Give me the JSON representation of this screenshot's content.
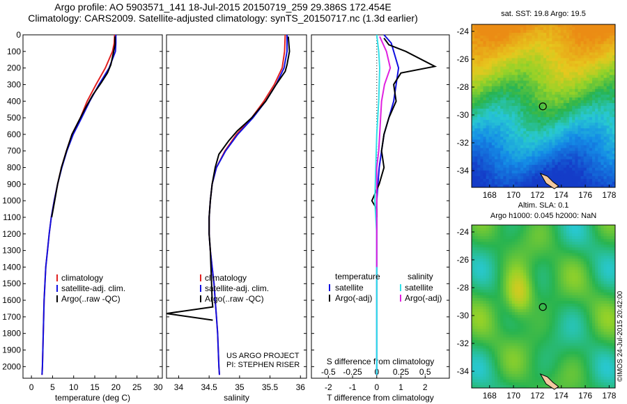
{
  "header": {
    "line1": "Argo profile: AO 5903571_141 18-Jul-2015 20150719_259 29.386S 172.454E",
    "line2": "Climatology: CARS2009. Satellite-adjusted climatology: synTS_20150717.nc (1.3d earlier)"
  },
  "credit": {
    "line1": "US ARGO PROJECT",
    "line2": "PI: STEPHEN RISER"
  },
  "watermark": "©IMOS 24-Jul-2015 20:42:00",
  "colors": {
    "climatology": "#e02020",
    "satellite": "#1010e0",
    "argo": "#000000",
    "sal_satellite": "#30e0e8",
    "sal_argo": "#e020e0"
  },
  "chart_data": [
    {
      "type": "line",
      "xlabel": "temperature (deg C)",
      "xticks": [
        "0",
        "5",
        "10",
        "15",
        "20",
        "25",
        "30"
      ],
      "xlim": [
        -2,
        31
      ],
      "yticks": [
        "0",
        "100",
        "200",
        "300",
        "400",
        "500",
        "600",
        "700",
        "800",
        "900",
        "1000",
        "1100",
        "1200",
        "1300",
        "1400",
        "1500",
        "1600",
        "1700",
        "1800",
        "1900",
        "2000"
      ],
      "ylim": [
        2070,
        0
      ],
      "legend": [
        "climatology",
        "satellite-adj. clim.",
        "Argo(..raw -QC)"
      ],
      "series": [
        {
          "name": "climatology",
          "color": "#e02020",
          "points": [
            [
              19.7,
              0
            ],
            [
              19.6,
              50
            ],
            [
              19.2,
              100
            ],
            [
              17.5,
              200
            ],
            [
              15.3,
              300
            ],
            [
              13.2,
              400
            ],
            [
              11.6,
              500
            ],
            [
              9.6,
              600
            ],
            [
              8.3,
              700
            ],
            [
              7.1,
              800
            ],
            [
              6.2,
              900
            ],
            [
              5.4,
              1000
            ],
            [
              4.7,
              1100
            ],
            [
              4.2,
              1200
            ],
            [
              3.8,
              1300
            ],
            [
              3.4,
              1400
            ],
            [
              3.2,
              1500
            ],
            [
              3.0,
              1600
            ],
            [
              2.9,
              1700
            ],
            [
              2.8,
              1800
            ],
            [
              2.7,
              1900
            ],
            [
              2.6,
              2000
            ],
            [
              2.5,
              2050
            ]
          ]
        },
        {
          "name": "satellite-adj. clim.",
          "color": "#1010e0",
          "points": [
            [
              20.0,
              0
            ],
            [
              20.0,
              50
            ],
            [
              19.9,
              100
            ],
            [
              18.4,
              200
            ],
            [
              16.0,
              300
            ],
            [
              13.8,
              400
            ],
            [
              11.9,
              500
            ],
            [
              9.9,
              600
            ],
            [
              8.4,
              700
            ],
            [
              7.2,
              800
            ],
            [
              6.2,
              900
            ],
            [
              5.4,
              1000
            ],
            [
              4.7,
              1100
            ],
            [
              4.2,
              1200
            ],
            [
              3.8,
              1300
            ],
            [
              3.4,
              1400
            ],
            [
              3.2,
              1500
            ],
            [
              3.0,
              1600
            ],
            [
              2.9,
              1700
            ],
            [
              2.8,
              1800
            ],
            [
              2.7,
              1900
            ],
            [
              2.6,
              2000
            ],
            [
              2.5,
              2050
            ]
          ]
        },
        {
          "name": "Argo(..raw -QC)",
          "color": "#000000",
          "points": [
            [
              19.8,
              10
            ],
            [
              19.8,
              60
            ],
            [
              19.4,
              110
            ],
            [
              18.8,
              180
            ],
            [
              18.0,
              230
            ],
            [
              16.5,
              290
            ],
            [
              14.6,
              360
            ],
            [
              12.8,
              440
            ],
            [
              11.0,
              530
            ],
            [
              9.6,
              600
            ],
            [
              8.3,
              700
            ],
            [
              7.1,
              800
            ],
            [
              6.2,
              900
            ],
            [
              5.5,
              1000
            ],
            [
              4.8,
              1100
            ]
          ]
        }
      ]
    },
    {
      "type": "line",
      "xlabel": "salinity",
      "xticks": [
        "34",
        "34.5",
        "35",
        "35.5",
        "36"
      ],
      "xlim": [
        33.8,
        36.1
      ],
      "yticks": [],
      "ylim": [
        2070,
        0
      ],
      "legend": [
        "climatology",
        "satellite-adj. clim.",
        "Argo(..raw -QC)"
      ],
      "series": [
        {
          "name": "climatology",
          "color": "#e02020",
          "points": [
            [
              35.75,
              0
            ],
            [
              35.74,
              100
            ],
            [
              35.7,
              200
            ],
            [
              35.57,
              300
            ],
            [
              35.4,
              400
            ],
            [
              35.2,
              500
            ],
            [
              34.95,
              600
            ],
            [
              34.76,
              700
            ],
            [
              34.62,
              800
            ],
            [
              34.55,
              900
            ],
            [
              34.52,
              1000
            ],
            [
              34.5,
              1100
            ],
            [
              34.5,
              1200
            ],
            [
              34.52,
              1300
            ],
            [
              34.55,
              1400
            ],
            [
              34.58,
              1500
            ],
            [
              34.6,
              1600
            ],
            [
              34.62,
              1700
            ],
            [
              34.64,
              1800
            ],
            [
              34.65,
              1900
            ],
            [
              34.66,
              2000
            ],
            [
              34.67,
              2050
            ]
          ]
        },
        {
          "name": "satellite-adj. clim.",
          "color": "#1010e0",
          "points": [
            [
              35.78,
              0
            ],
            [
              35.78,
              100
            ],
            [
              35.73,
              200
            ],
            [
              35.6,
              300
            ],
            [
              35.43,
              400
            ],
            [
              35.22,
              500
            ],
            [
              34.97,
              600
            ],
            [
              34.77,
              700
            ],
            [
              34.62,
              800
            ],
            [
              34.55,
              900
            ],
            [
              34.52,
              1000
            ],
            [
              34.5,
              1100
            ],
            [
              34.5,
              1200
            ],
            [
              34.52,
              1300
            ],
            [
              34.55,
              1400
            ],
            [
              34.58,
              1500
            ],
            [
              34.6,
              1600
            ],
            [
              34.62,
              1700
            ],
            [
              34.64,
              1800
            ],
            [
              34.65,
              1900
            ],
            [
              34.66,
              2000
            ],
            [
              34.67,
              2050
            ]
          ]
        },
        {
          "name": "Argo(..raw -QC)",
          "color": "#000000",
          "points": [
            [
              35.8,
              10
            ],
            [
              35.82,
              100
            ],
            [
              35.78,
              180
            ],
            [
              35.75,
              220
            ],
            [
              35.6,
              300
            ],
            [
              35.43,
              400
            ],
            [
              35.2,
              500
            ],
            [
              34.96,
              580
            ],
            [
              34.82,
              640
            ],
            [
              34.66,
              720
            ],
            [
              34.6,
              800
            ],
            [
              34.55,
              900
            ],
            [
              34.52,
              1000
            ],
            [
              34.5,
              1100
            ],
            [
              34.5,
              1200
            ],
            [
              34.52,
              1300
            ],
            [
              34.53,
              1400
            ],
            [
              34.54,
              1500
            ],
            [
              34.55,
              1600
            ],
            [
              34.56,
              1640
            ],
            [
              33.8,
              1680
            ],
            [
              34.56,
              1720
            ]
          ]
        }
      ]
    },
    {
      "type": "line",
      "xlabel": "T difference from climatology",
      "xticks": [
        "-2",
        "-1",
        "0",
        "1",
        "2"
      ],
      "xlim": [
        -2.7,
        3.0
      ],
      "x2label": "S difference from climatology",
      "x2ticks": [
        "-0.5",
        "-0.25",
        "0",
        "0.25",
        "0.5"
      ],
      "x2lim": [
        -0.675,
        0.75
      ],
      "yticks": [],
      "ylim": [
        2070,
        0
      ],
      "legend": [
        "temperature",
        "satellite",
        "Argo(-adj)",
        "salinity",
        "satellite",
        "Argo(-adj)"
      ],
      "series": [
        {
          "name": "satellite",
          "color": "#1010e0",
          "points": [
            [
              0.3,
              0
            ],
            [
              0.6,
              50
            ],
            [
              0.7,
              100
            ],
            [
              0.9,
              200
            ],
            [
              0.8,
              300
            ],
            [
              0.7,
              400
            ],
            [
              0.5,
              500
            ],
            [
              0.3,
              600
            ],
            [
              0.2,
              700
            ],
            [
              0.1,
              800
            ],
            [
              0.05,
              900
            ],
            [
              0.0,
              1000
            ],
            [
              0.0,
              1200
            ],
            [
              0.0,
              2050
            ]
          ]
        },
        {
          "name": "Argo(-adj)",
          "color": "#000000",
          "points": [
            [
              0.3,
              20
            ],
            [
              0.5,
              60
            ],
            [
              1.2,
              100
            ],
            [
              2.4,
              190
            ],
            [
              1.0,
              230
            ],
            [
              0.7,
              300
            ],
            [
              0.8,
              400
            ],
            [
              0.5,
              500
            ],
            [
              0.3,
              600
            ],
            [
              0.2,
              700
            ],
            [
              0.3,
              800
            ],
            [
              0.1,
              900
            ],
            [
              -0.2,
              1000
            ],
            [
              0.0,
              1050
            ],
            [
              0.0,
              1100
            ]
          ]
        },
        {
          "name": "salinity satellite",
          "color": "#30e0e8",
          "points": [
            [
              0.0,
              0
            ],
            [
              0.02,
              100
            ],
            [
              0.03,
              200
            ],
            [
              0.02,
              400
            ],
            [
              0.0,
              600
            ],
            [
              -0.01,
              800
            ],
            [
              -0.02,
              1000
            ],
            [
              0.0,
              1200
            ],
            [
              0.0,
              2050
            ]
          ]
        },
        {
          "name": "salinity Argo(-adj)",
          "color": "#e020e0",
          "points": [
            [
              0.03,
              10
            ],
            [
              0.1,
              100
            ],
            [
              0.14,
              200
            ],
            [
              0.08,
              300
            ],
            [
              0.05,
              400
            ],
            [
              0.04,
              500
            ],
            [
              0.03,
              600
            ],
            [
              0.02,
              700
            ],
            [
              0.0,
              800
            ],
            [
              0.0,
              1000
            ],
            [
              0.0,
              1400
            ]
          ]
        }
      ]
    },
    {
      "type": "heatmap",
      "title": "sat. SST: 19.8  Argo: 19.5",
      "xticks": [
        "168",
        "170",
        "172",
        "174",
        "176",
        "178"
      ],
      "yticks": [
        "-24",
        "-26",
        "-28",
        "-30",
        "-32",
        "-34"
      ],
      "xlim": [
        166.5,
        178.5
      ],
      "ylim": [
        -35.2,
        -23.5
      ],
      "marker": [
        172.454,
        -29.386
      ]
    },
    {
      "type": "heatmap",
      "title": "Altim. SLA: 0.1",
      "subtitle": "Argo h1000: 0.045 h2000: NaN",
      "xticks": [
        "168",
        "170",
        "172",
        "174",
        "176",
        "178"
      ],
      "yticks": [
        "-24",
        "-26",
        "-28",
        "-30",
        "-32",
        "-34"
      ],
      "xlim": [
        166.5,
        178.5
      ],
      "ylim": [
        -35.2,
        -23.5
      ],
      "marker": [
        172.454,
        -29.386
      ]
    }
  ]
}
